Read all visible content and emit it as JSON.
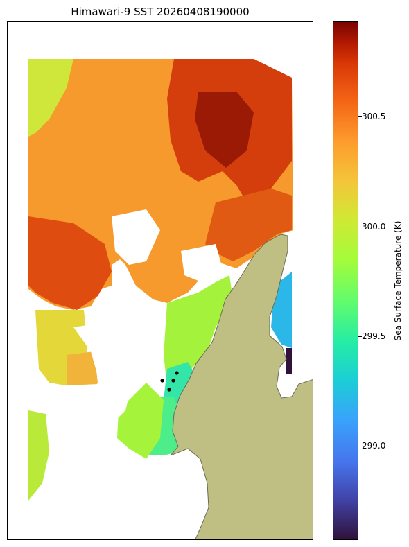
{
  "title": "Himawari-9 SST 20260408190000",
  "colorbar": {
    "label": "Sea Surface Temperature (K)",
    "ticks": [
      "300.5",
      "300.0",
      "299.5",
      "299.0"
    ],
    "tick_values": [
      300.5,
      300.0,
      299.5,
      299.0
    ],
    "range": [
      298.6,
      300.95
    ],
    "colormap": "turbo"
  },
  "colors": {
    "land": "#bfbf84",
    "coast": "#6b6b55",
    "frame": "#000000",
    "markers": "#000000"
  },
  "markers": {
    "count": 4
  }
}
